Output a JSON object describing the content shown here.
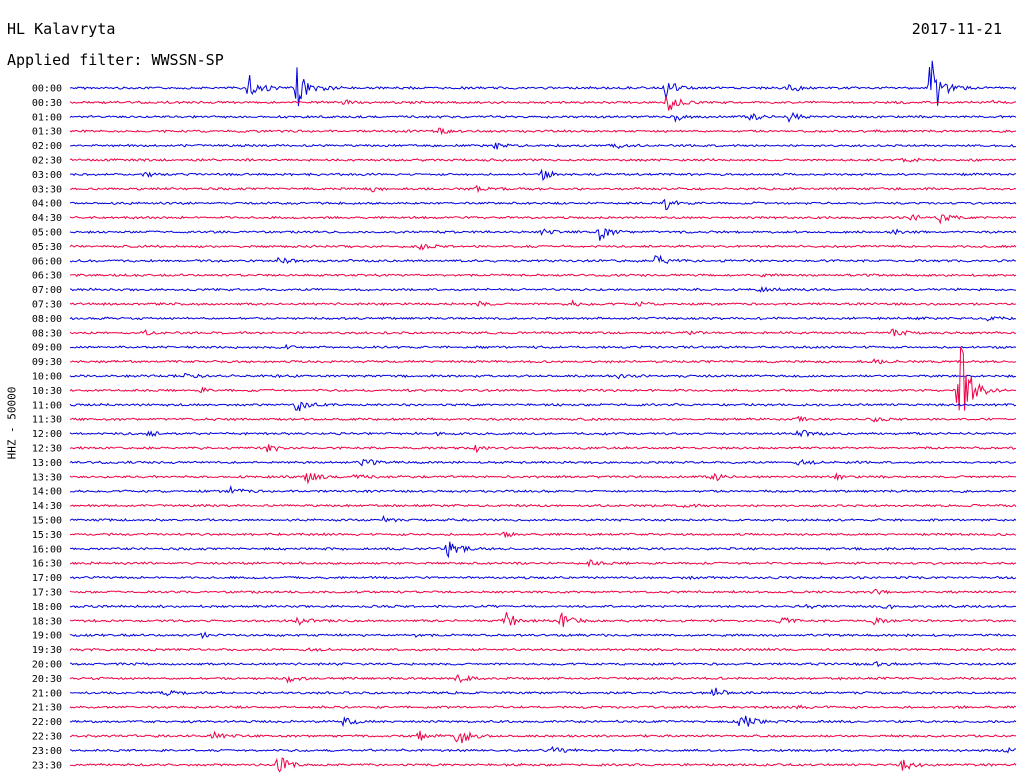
{
  "header": {
    "station": "HL Kalavryta",
    "date": "2017-11-21",
    "filter": "Applied filter: WWSSN-SP"
  },
  "chart_data": {
    "type": "line",
    "ylabel": "HHZ - 50000",
    "colors": [
      "#0000dd",
      "#ee0044"
    ],
    "grid": false,
    "rows": [
      {
        "label": "00:00",
        "events": [
          [
            0.19,
            18
          ],
          [
            0.24,
            20
          ],
          [
            0.27,
            3
          ],
          [
            0.63,
            10
          ],
          [
            0.76,
            5
          ],
          [
            0.91,
            42
          ]
        ]
      },
      {
        "label": "00:30",
        "events": [
          [
            0.29,
            2
          ],
          [
            0.63,
            14
          ],
          [
            0.97,
            3
          ]
        ]
      },
      {
        "label": "01:00",
        "events": [
          [
            0.64,
            4
          ],
          [
            0.72,
            4
          ],
          [
            0.76,
            5
          ]
        ]
      },
      {
        "label": "01:30",
        "events": [
          [
            0.39,
            3
          ]
        ]
      },
      {
        "label": "02:00",
        "events": [
          [
            0.45,
            3
          ],
          [
            0.57,
            5
          ]
        ]
      },
      {
        "label": "02:30",
        "events": [
          [
            0.88,
            2
          ]
        ]
      },
      {
        "label": "03:00",
        "events": [
          [
            0.08,
            2
          ],
          [
            0.5,
            5
          ]
        ]
      },
      {
        "label": "03:30",
        "events": [
          [
            0.32,
            2
          ],
          [
            0.43,
            2
          ]
        ]
      },
      {
        "label": "04:00",
        "events": [
          [
            0.63,
            6
          ]
        ]
      },
      {
        "label": "04:30",
        "events": [
          [
            0.89,
            3
          ],
          [
            0.92,
            4
          ]
        ]
      },
      {
        "label": "05:00",
        "events": [
          [
            0.5,
            3
          ],
          [
            0.56,
            9
          ],
          [
            0.87,
            2
          ]
        ]
      },
      {
        "label": "05:30",
        "events": [
          [
            0.37,
            3
          ]
        ]
      },
      {
        "label": "06:00",
        "events": [
          [
            0.22,
            5
          ],
          [
            0.62,
            6
          ]
        ]
      },
      {
        "label": "06:30",
        "events": [
          [
            0.73,
            1
          ]
        ]
      },
      {
        "label": "07:00",
        "events": [
          [
            0.73,
            2
          ]
        ]
      },
      {
        "label": "07:30",
        "events": [
          [
            0.43,
            3
          ],
          [
            0.53,
            3
          ],
          [
            0.6,
            2
          ]
        ]
      },
      {
        "label": "08:00",
        "events": [
          [
            0.97,
            2
          ]
        ]
      },
      {
        "label": "08:30",
        "events": [
          [
            0.08,
            2
          ],
          [
            0.65,
            2
          ],
          [
            0.87,
            4
          ]
        ]
      },
      {
        "label": "09:00",
        "events": [
          [
            0.23,
            2
          ]
        ]
      },
      {
        "label": "09:30",
        "events": [
          [
            0.85,
            2
          ]
        ]
      },
      {
        "label": "10:00",
        "events": [
          [
            0.12,
            2
          ],
          [
            0.58,
            2
          ]
        ]
      },
      {
        "label": "10:30",
        "events": [
          [
            0.14,
            2
          ],
          [
            0.94,
            62
          ]
        ]
      },
      {
        "label": "11:00",
        "events": [
          [
            0.24,
            8
          ]
        ]
      },
      {
        "label": "11:30",
        "events": [
          [
            0.77,
            2
          ],
          [
            0.85,
            2
          ]
        ]
      },
      {
        "label": "12:00",
        "events": [
          [
            0.08,
            3
          ],
          [
            0.39,
            2
          ],
          [
            0.77,
            5
          ]
        ]
      },
      {
        "label": "12:30",
        "events": [
          [
            0.21,
            5
          ],
          [
            0.43,
            3
          ]
        ]
      },
      {
        "label": "13:00",
        "events": [
          [
            0.31,
            4
          ],
          [
            0.77,
            4
          ]
        ]
      },
      {
        "label": "13:30",
        "events": [
          [
            0.25,
            6
          ],
          [
            0.3,
            3
          ],
          [
            0.68,
            4
          ],
          [
            0.81,
            2
          ]
        ]
      },
      {
        "label": "14:00",
        "events": [
          [
            0.17,
            4
          ]
        ]
      },
      {
        "label": "14:30",
        "events": [
          [
            0.65,
            2
          ]
        ]
      },
      {
        "label": "15:00",
        "events": [
          [
            0.33,
            3
          ]
        ]
      },
      {
        "label": "15:30",
        "events": [
          [
            0.46,
            2
          ]
        ]
      },
      {
        "label": "16:00",
        "events": [
          [
            0.4,
            10
          ]
        ]
      },
      {
        "label": "16:30",
        "events": [
          [
            0.55,
            3
          ]
        ]
      },
      {
        "label": "17:00",
        "events": [
          [
            0.65,
            2
          ]
        ]
      },
      {
        "label": "17:30",
        "events": [
          [
            0.85,
            2
          ]
        ]
      },
      {
        "label": "18:00",
        "events": [
          [
            0.78,
            2
          ],
          [
            0.86,
            3
          ]
        ]
      },
      {
        "label": "18:30",
        "events": [
          [
            0.24,
            4
          ],
          [
            0.46,
            10
          ],
          [
            0.52,
            8
          ],
          [
            0.75,
            4
          ],
          [
            0.85,
            3
          ]
        ]
      },
      {
        "label": "19:00",
        "events": [
          [
            0.14,
            2
          ],
          [
            0.36,
            2
          ]
        ]
      },
      {
        "label": "19:30",
        "events": [
          [
            0.25,
            2
          ]
        ]
      },
      {
        "label": "20:00",
        "events": [
          [
            0.85,
            2
          ]
        ]
      },
      {
        "label": "20:30",
        "events": [
          [
            0.23,
            3
          ],
          [
            0.41,
            4
          ]
        ]
      },
      {
        "label": "21:00",
        "events": [
          [
            0.1,
            3
          ],
          [
            0.68,
            6
          ]
        ]
      },
      {
        "label": "21:30",
        "events": [
          [
            0.77,
            2
          ]
        ]
      },
      {
        "label": "22:00",
        "events": [
          [
            0.29,
            5
          ],
          [
            0.71,
            12
          ]
        ]
      },
      {
        "label": "22:30",
        "events": [
          [
            0.15,
            4
          ],
          [
            0.37,
            5
          ],
          [
            0.41,
            12
          ]
        ]
      },
      {
        "label": "23:00",
        "events": [
          [
            0.51,
            3
          ],
          [
            0.99,
            2
          ]
        ]
      },
      {
        "label": "23:30",
        "events": [
          [
            0.22,
            10
          ],
          [
            0.88,
            6
          ]
        ]
      }
    ]
  }
}
